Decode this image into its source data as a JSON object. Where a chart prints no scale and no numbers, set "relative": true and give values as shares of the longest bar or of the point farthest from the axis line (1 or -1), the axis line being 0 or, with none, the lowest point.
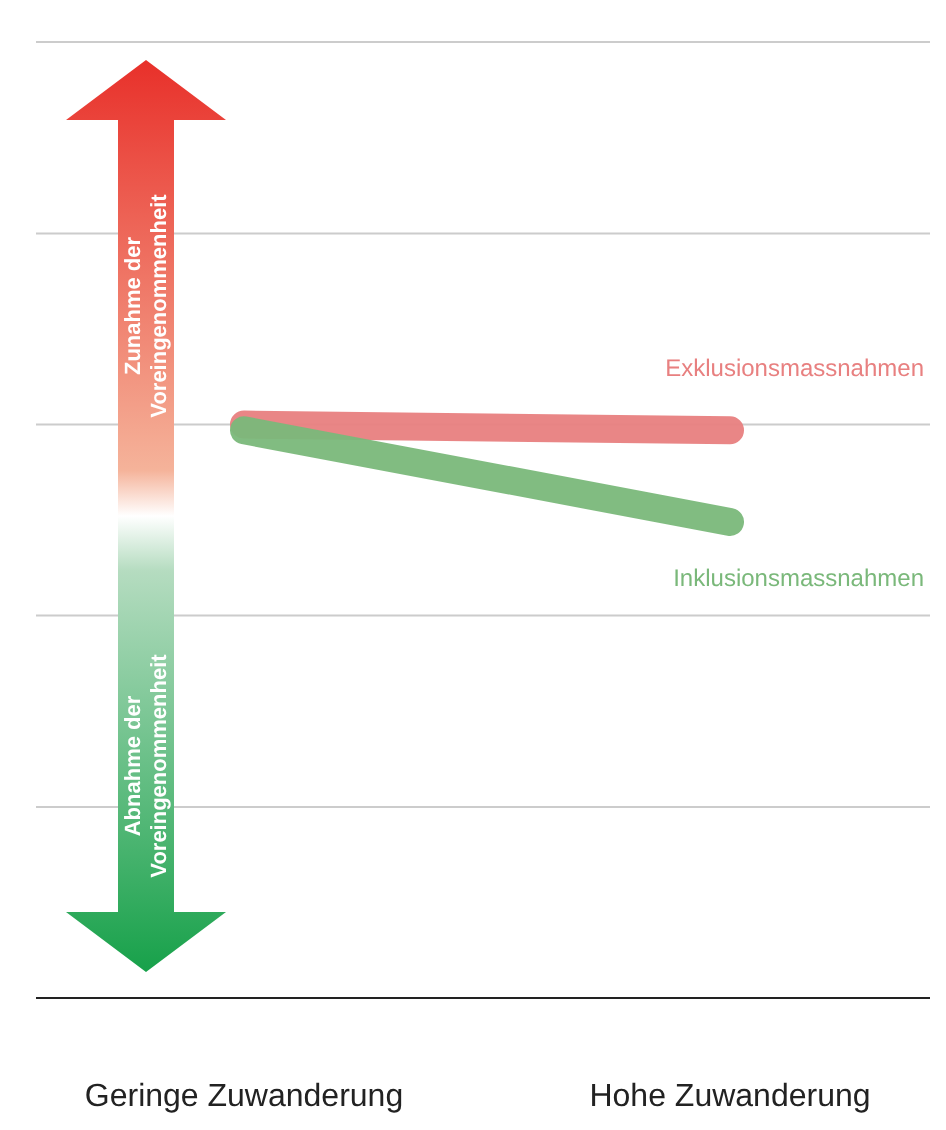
{
  "chart_data": {
    "type": "line",
    "relative": true,
    "categories": [
      "Geringe Zuwanderung",
      "Hohe Zuwanderung"
    ],
    "series": [
      {
        "name": "Exklusionsmassnahmen",
        "color": "#e88080",
        "values": [
          1,
          0.99
        ]
      },
      {
        "name": "Inklusionsmassnahmen",
        "color": "#7ab87a",
        "values": [
          0.99,
          0.83
        ]
      }
    ],
    "ref_lines": [
      {
        "axis": "y",
        "value": 0.333,
        "color": "#cccccc"
      },
      {
        "axis": "y",
        "value": 0.667,
        "color": "#cccccc"
      },
      {
        "axis": "y",
        "value": 1,
        "color": "#cccccc"
      },
      {
        "axis": "y",
        "value": 1.333,
        "color": "#cccccc"
      },
      {
        "axis": "y",
        "value": 1.667,
        "color": "#cccccc"
      }
    ],
    "legend": false,
    "marker": "none",
    "line_style": "solid",
    "annotations": [
      "Zunahme der Voreingenommenheit",
      "Abnahme der Voreingenommenheit"
    ]
  }
}
